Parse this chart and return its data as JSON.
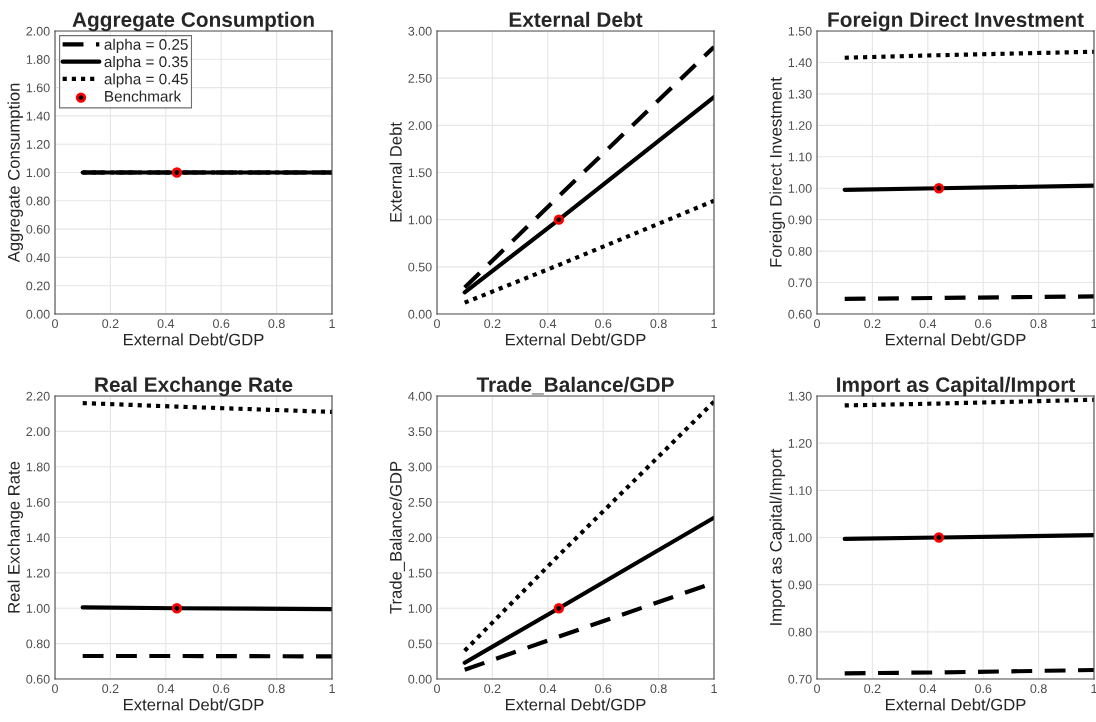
{
  "chart_data": [
    {
      "type": "line",
      "title": "Aggregate Consumption",
      "xlabel": "External Debt/GDP",
      "ylabel": "Aggregate Consumption",
      "xlim": [
        0,
        1
      ],
      "xticks": [
        0,
        0.2,
        0.4,
        0.6,
        0.8,
        1
      ],
      "ylim": [
        0,
        2
      ],
      "yticks": [
        {
          "value": 0,
          "label": "0.00"
        },
        {
          "value": 0.2,
          "label": "0.20"
        },
        {
          "value": 0.4,
          "label": "0.40"
        },
        {
          "value": 0.6,
          "label": "0.60"
        },
        {
          "value": 0.8,
          "label": "0.80"
        },
        {
          "value": 1,
          "label": "1.00"
        },
        {
          "value": 1.2,
          "label": "1.20"
        },
        {
          "value": 1.4,
          "label": "1.40"
        },
        {
          "value": 1.6,
          "label": "1.60"
        },
        {
          "value": 1.8,
          "label": "1.80"
        },
        {
          "value": 2,
          "label": "2.00"
        }
      ],
      "grid": true,
      "legend": "top left",
      "series": [
        {
          "name": "alpha = 0.25",
          "color": "#000000",
          "line_style": "dashed",
          "x": [
            0.1,
            0.44,
            1
          ],
          "values": [
            1.0,
            1.0,
            1.0
          ]
        },
        {
          "name": "alpha = 0.35",
          "color": "#000000",
          "line_style": "solid",
          "x": [
            0.1,
            0.44,
            1
          ],
          "values": [
            1.0,
            1.0,
            1.0
          ]
        },
        {
          "name": "alpha = 0.45",
          "color": "#000000",
          "line_style": "dotted",
          "x": [
            0.1,
            0.44,
            1
          ],
          "values": [
            1.0,
            1.0,
            1.0
          ]
        },
        {
          "name": "Benchmark",
          "type": "scatter",
          "marker": "circle",
          "color": "#ff0000",
          "x": [
            0.44
          ],
          "values": [
            1.0
          ]
        }
      ]
    },
    {
      "type": "line",
      "title": "External Debt",
      "xlabel": "External Debt/GDP",
      "ylabel": "External Debt",
      "xlim": [
        0,
        1
      ],
      "xticks": [
        0,
        0.2,
        0.4,
        0.6,
        0.8,
        1
      ],
      "ylim": [
        0,
        3
      ],
      "yticks": [
        {
          "value": 0,
          "label": "0.00"
        },
        {
          "value": 0.5,
          "label": "0.50"
        },
        {
          "value": 1,
          "label": "1.00"
        },
        {
          "value": 1.5,
          "label": "1.50"
        },
        {
          "value": 2,
          "label": "2.00"
        },
        {
          "value": 2.5,
          "label": "2.50"
        },
        {
          "value": 3,
          "label": "3.00"
        }
      ],
      "grid": true,
      "series": [
        {
          "color": "#000000",
          "line_style": "dashed",
          "x": [
            0.1,
            0.44,
            1
          ],
          "values": [
            0.28,
            1.25,
            2.83
          ]
        },
        {
          "color": "#000000",
          "line_style": "solid",
          "x": [
            0.1,
            0.44,
            1
          ],
          "values": [
            0.23,
            1.0,
            2.3
          ]
        },
        {
          "color": "#000000",
          "line_style": "dotted",
          "x": [
            0.1,
            0.44,
            1
          ],
          "values": [
            0.12,
            0.52,
            1.2
          ]
        },
        {
          "type": "scatter",
          "marker": "circle",
          "color": "#ff0000",
          "x": [
            0.44
          ],
          "values": [
            1.0
          ]
        }
      ]
    },
    {
      "type": "line",
      "title": "Foreign Direct Investment",
      "xlabel": "External Debt/GDP",
      "ylabel": "Foreign Direct Investment",
      "xlim": [
        0,
        1
      ],
      "xticks": [
        0,
        0.2,
        0.4,
        0.6,
        0.8,
        1
      ],
      "ylim": [
        0.6,
        1.5
      ],
      "yticks": [
        {
          "value": 0.6,
          "label": "0.60"
        },
        {
          "value": 0.7,
          "label": "0.70"
        },
        {
          "value": 0.8,
          "label": "0.80"
        },
        {
          "value": 0.9,
          "label": "0.90"
        },
        {
          "value": 1.0,
          "label": "1.00"
        },
        {
          "value": 1.1,
          "label": "1.10"
        },
        {
          "value": 1.2,
          "label": "1.20"
        },
        {
          "value": 1.3,
          "label": "1.30"
        },
        {
          "value": 1.4,
          "label": "1.40"
        },
        {
          "value": 1.5,
          "label": "1.50"
        }
      ],
      "grid": true,
      "series": [
        {
          "color": "#000000",
          "line_style": "dashed",
          "x": [
            0.1,
            0.44,
            1
          ],
          "values": [
            0.648,
            0.651,
            0.656
          ]
        },
        {
          "color": "#000000",
          "line_style": "solid",
          "x": [
            0.1,
            0.44,
            1
          ],
          "values": [
            0.995,
            1.0,
            1.008
          ]
        },
        {
          "color": "#000000",
          "line_style": "dotted",
          "x": [
            0.1,
            0.44,
            1
          ],
          "values": [
            1.415,
            1.423,
            1.434
          ]
        },
        {
          "type": "scatter",
          "marker": "circle",
          "color": "#ff0000",
          "x": [
            0.44
          ],
          "values": [
            1.0
          ]
        }
      ]
    },
    {
      "type": "line",
      "title": "Real Exchange Rate",
      "xlabel": "External Debt/GDP",
      "ylabel": "Real Exchange Rate",
      "xlim": [
        0,
        1
      ],
      "xticks": [
        0,
        0.2,
        0.4,
        0.6,
        0.8,
        1
      ],
      "ylim": [
        0.6,
        2.2
      ],
      "yticks": [
        {
          "value": 0.6,
          "label": "0.60"
        },
        {
          "value": 0.8,
          "label": "0.80"
        },
        {
          "value": 1.0,
          "label": "1.00"
        },
        {
          "value": 1.2,
          "label": "1.20"
        },
        {
          "value": 1.4,
          "label": "1.40"
        },
        {
          "value": 1.6,
          "label": "1.60"
        },
        {
          "value": 1.8,
          "label": "1.80"
        },
        {
          "value": 2.0,
          "label": "2.00"
        },
        {
          "value": 2.2,
          "label": "2.20"
        }
      ],
      "grid": true,
      "series": [
        {
          "color": "#000000",
          "line_style": "dashed",
          "x": [
            0.1,
            0.44,
            1
          ],
          "values": [
            0.73,
            0.73,
            0.728
          ]
        },
        {
          "color": "#000000",
          "line_style": "solid",
          "x": [
            0.1,
            0.44,
            1
          ],
          "values": [
            1.005,
            1.0,
            0.995
          ]
        },
        {
          "color": "#000000",
          "line_style": "dotted",
          "x": [
            0.1,
            0.44,
            1
          ],
          "values": [
            2.16,
            2.14,
            2.11
          ]
        },
        {
          "type": "scatter",
          "marker": "circle",
          "color": "#ff0000",
          "x": [
            0.44
          ],
          "values": [
            1.0
          ]
        }
      ]
    },
    {
      "type": "line",
      "title": "Trade_Balance/GDP",
      "xlabel": "External Debt/GDP",
      "ylabel": "Trade_Balance/GDP",
      "xlim": [
        0,
        1
      ],
      "xticks": [
        0,
        0.2,
        0.4,
        0.6,
        0.8,
        1
      ],
      "ylim": [
        0,
        4
      ],
      "yticks": [
        {
          "value": 0,
          "label": "0.00"
        },
        {
          "value": 0.5,
          "label": "0.50"
        },
        {
          "value": 1,
          "label": "1.00"
        },
        {
          "value": 1.5,
          "label": "1.50"
        },
        {
          "value": 2,
          "label": "2.00"
        },
        {
          "value": 2.5,
          "label": "2.50"
        },
        {
          "value": 3,
          "label": "3.00"
        },
        {
          "value": 3.5,
          "label": "3.50"
        },
        {
          "value": 4,
          "label": "4.00"
        }
      ],
      "grid": true,
      "series": [
        {
          "color": "#000000",
          "line_style": "dashed",
          "x": [
            0.1,
            0.44,
            1
          ],
          "values": [
            0.13,
            0.6,
            1.36
          ]
        },
        {
          "color": "#000000",
          "line_style": "solid",
          "x": [
            0.1,
            0.44,
            1
          ],
          "values": [
            0.23,
            1.0,
            2.28
          ]
        },
        {
          "color": "#000000",
          "line_style": "dotted",
          "x": [
            0.1,
            0.44,
            1
          ],
          "values": [
            0.4,
            1.75,
            3.92
          ]
        },
        {
          "type": "scatter",
          "marker": "circle",
          "color": "#ff0000",
          "x": [
            0.44
          ],
          "values": [
            1.0
          ]
        }
      ]
    },
    {
      "type": "line",
      "title": "Import as Capital/Import",
      "xlabel": "External Debt/GDP",
      "ylabel": "Import as Capital/Import",
      "xlim": [
        0,
        1
      ],
      "xticks": [
        0,
        0.2,
        0.4,
        0.6,
        0.8,
        1
      ],
      "ylim": [
        0.7,
        1.3
      ],
      "yticks": [
        {
          "value": 0.7,
          "label": "0.70"
        },
        {
          "value": 0.8,
          "label": "0.80"
        },
        {
          "value": 0.9,
          "label": "0.90"
        },
        {
          "value": 1.0,
          "label": "1.00"
        },
        {
          "value": 1.1,
          "label": "1.10"
        },
        {
          "value": 1.2,
          "label": "1.20"
        },
        {
          "value": 1.3,
          "label": "1.30"
        }
      ],
      "grid": true,
      "series": [
        {
          "color": "#000000",
          "line_style": "dashed",
          "x": [
            0.1,
            0.44,
            1
          ],
          "values": [
            0.712,
            0.714,
            0.719
          ]
        },
        {
          "color": "#000000",
          "line_style": "solid",
          "x": [
            0.1,
            0.44,
            1
          ],
          "values": [
            0.997,
            1.0,
            1.005
          ]
        },
        {
          "color": "#000000",
          "line_style": "dotted",
          "x": [
            0.1,
            0.44,
            1
          ],
          "values": [
            1.28,
            1.284,
            1.292
          ]
        },
        {
          "type": "scatter",
          "marker": "circle",
          "color": "#ff0000",
          "x": [
            0.44
          ],
          "values": [
            1.0
          ]
        }
      ]
    }
  ]
}
